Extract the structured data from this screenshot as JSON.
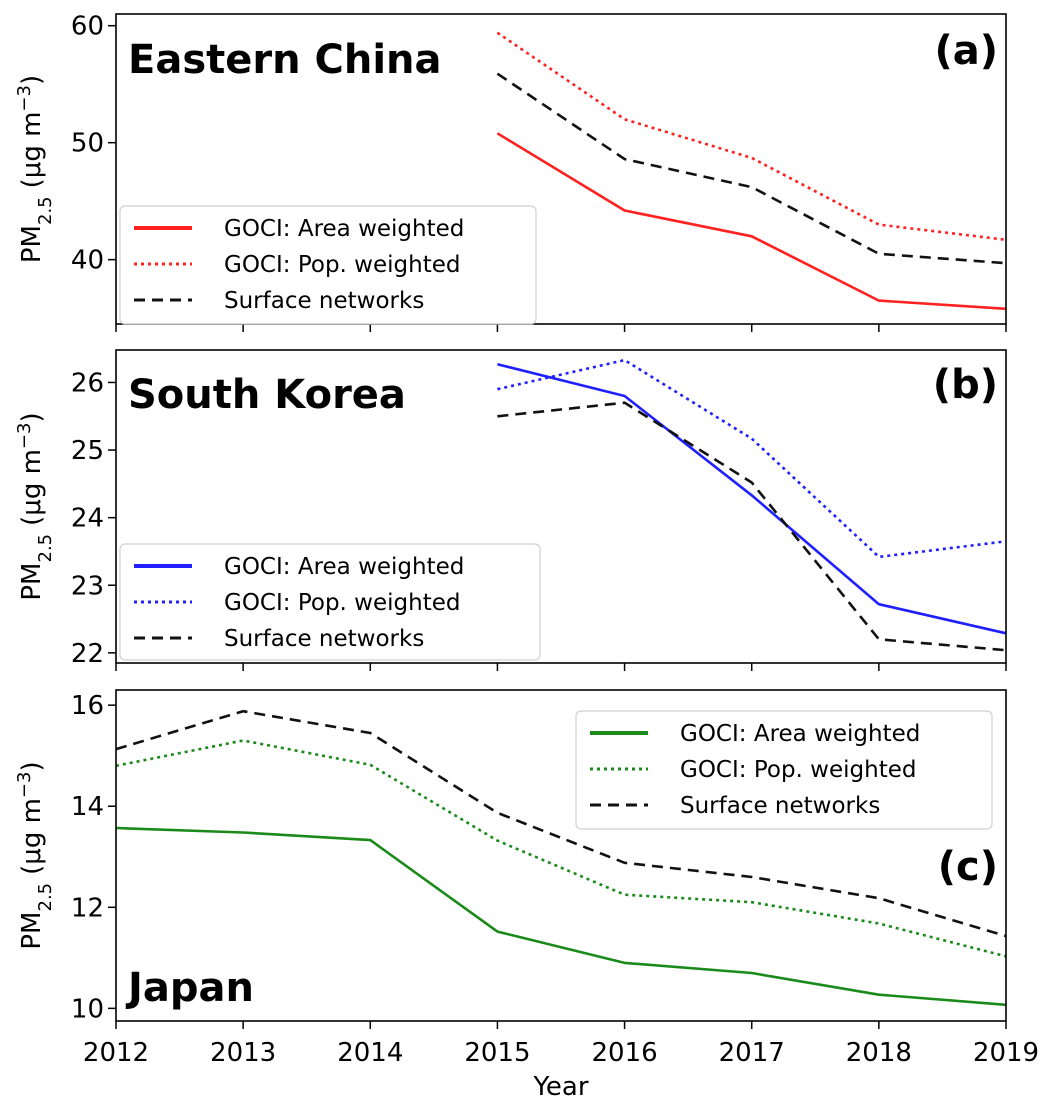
{
  "chart_data": [
    {
      "type": "line",
      "title": "Eastern China",
      "panel_tag": "(a)",
      "ylabel": "PM",
      "ylabel_sub": "2.5",
      "ylabel_units": "(μg m",
      "ylabel_units_sup": "−3",
      "ylabel_units_close": ")",
      "xlabel": "",
      "x": [
        2012,
        2013,
        2014,
        2015,
        2016,
        2017,
        2018,
        2019
      ],
      "xlim": [
        2012,
        2019
      ],
      "ylim": [
        34.5,
        61
      ],
      "yticks": [
        40,
        50,
        60
      ],
      "color": "#ff2020",
      "legend_position": "lower-left",
      "series": [
        {
          "name": "GOCI: Area weighted",
          "style": "solid",
          "x": [
            2015,
            2016,
            2017,
            2018,
            2019
          ],
          "values": [
            50.8,
            44.2,
            42.0,
            36.5,
            35.8
          ]
        },
        {
          "name": "GOCI: Pop. weighted",
          "style": "dotted",
          "x": [
            2015,
            2016,
            2017,
            2018,
            2019
          ],
          "values": [
            59.4,
            52.0,
            48.7,
            43.0,
            41.7
          ]
        },
        {
          "name": "Surface networks",
          "style": "dashed",
          "x": [
            2015,
            2016,
            2017,
            2018,
            2019
          ],
          "values": [
            55.9,
            48.6,
            46.2,
            40.5,
            39.7
          ]
        }
      ]
    },
    {
      "type": "line",
      "title": "South Korea",
      "panel_tag": "(b)",
      "ylabel": "PM",
      "ylabel_sub": "2.5",
      "ylabel_units": "(μg m",
      "ylabel_units_sup": "−3",
      "ylabel_units_close": ")",
      "xlabel": "",
      "x": [
        2012,
        2013,
        2014,
        2015,
        2016,
        2017,
        2018,
        2019
      ],
      "xlim": [
        2012,
        2019
      ],
      "ylim": [
        21.85,
        26.48
      ],
      "yticks": [
        22,
        23,
        24,
        25,
        26
      ],
      "color": "#2020ff",
      "legend_position": "lower-left",
      "series": [
        {
          "name": "GOCI: Area weighted",
          "style": "solid",
          "x": [
            2015,
            2016,
            2017,
            2018,
            2019
          ],
          "values": [
            26.27,
            25.8,
            24.33,
            22.72,
            22.29
          ]
        },
        {
          "name": "GOCI: Pop. weighted",
          "style": "dotted",
          "x": [
            2015,
            2016,
            2017,
            2018,
            2019
          ],
          "values": [
            25.9,
            26.33,
            25.17,
            23.42,
            23.65
          ]
        },
        {
          "name": "Surface networks",
          "style": "dashed",
          "x": [
            2015,
            2016,
            2017,
            2018,
            2019
          ],
          "values": [
            25.5,
            25.7,
            24.52,
            22.2,
            22.04
          ]
        }
      ]
    },
    {
      "type": "line",
      "title": "Japan",
      "panel_tag": "(c)",
      "ylabel": "PM",
      "ylabel_sub": "2.5",
      "ylabel_units": "(μg m",
      "ylabel_units_sup": "−3",
      "ylabel_units_close": ")",
      "xlabel": "Year",
      "x": [
        2012,
        2013,
        2014,
        2015,
        2016,
        2017,
        2018,
        2019
      ],
      "xlim": [
        2012,
        2019
      ],
      "ylim": [
        9.75,
        16.3
      ],
      "yticks": [
        10,
        12,
        14,
        16
      ],
      "color": "#1a8a1a",
      "legend_position": "upper-right",
      "series": [
        {
          "name": "GOCI: Area weighted",
          "style": "solid",
          "x": [
            2012,
            2013,
            2014,
            2015,
            2016,
            2017,
            2018,
            2019
          ],
          "values": [
            13.57,
            13.48,
            13.33,
            11.52,
            10.9,
            10.7,
            10.27,
            10.07
          ]
        },
        {
          "name": "GOCI: Pop. weighted",
          "style": "dotted",
          "x": [
            2012,
            2013,
            2014,
            2015,
            2016,
            2017,
            2018,
            2019
          ],
          "values": [
            14.8,
            15.3,
            14.82,
            13.32,
            12.25,
            12.1,
            11.68,
            11.03
          ]
        },
        {
          "name": "Surface networks",
          "style": "dashed",
          "x": [
            2012,
            2013,
            2014,
            2015,
            2016,
            2017,
            2018,
            2019
          ],
          "values": [
            15.13,
            15.88,
            15.45,
            13.87,
            12.88,
            12.6,
            12.18,
            11.43
          ]
        }
      ]
    }
  ]
}
